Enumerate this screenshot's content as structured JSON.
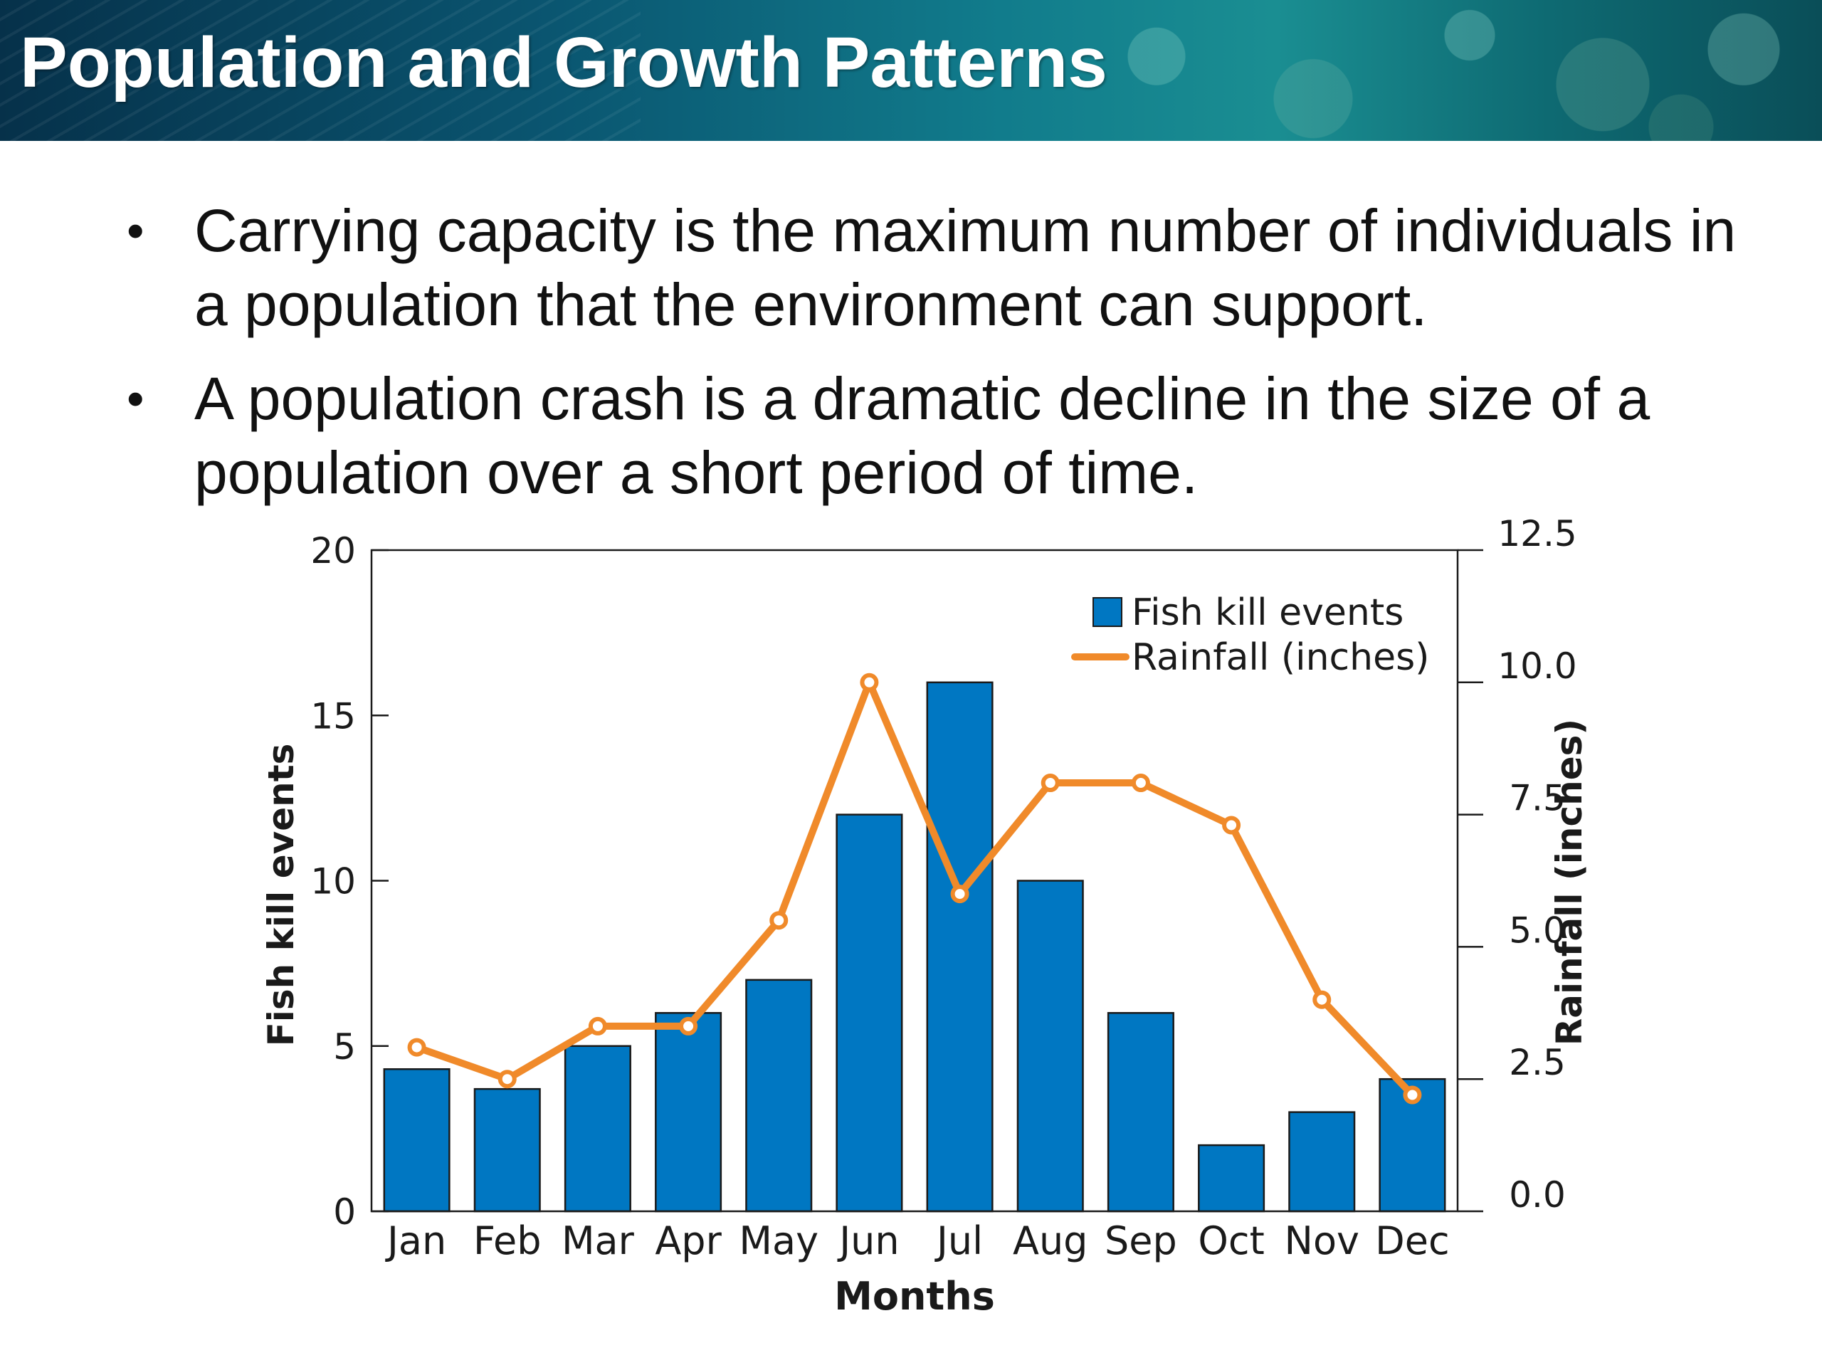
{
  "slide": {
    "title": "Population and Growth Patterns",
    "bullets": [
      "Carrying capacity is the maximum number of individuals in a population that the environment can support.",
      "A population crash is a dramatic decline in the size of a population over a short period of time."
    ]
  },
  "chart_data": {
    "type": "bar",
    "categories": [
      "Jan",
      "Feb",
      "Mar",
      "Apr",
      "May",
      "Jun",
      "Jul",
      "Aug",
      "Sep",
      "Oct",
      "Nov",
      "Dec"
    ],
    "series": [
      {
        "name": "Fish kill events",
        "type": "bar",
        "axis": "left",
        "color": "#0077c2",
        "values": [
          4.3,
          3.7,
          5,
          6,
          7,
          12,
          16,
          10,
          6,
          2,
          3,
          4
        ]
      },
      {
        "name": "Rainfall (inches)",
        "type": "line",
        "axis": "right",
        "color": "#f08a2a",
        "values": [
          3.1,
          2.5,
          3.5,
          3.5,
          5.5,
          10.0,
          6.0,
          8.1,
          8.1,
          7.3,
          4.0,
          2.2
        ]
      }
    ],
    "xlabel": "Months",
    "ylabel_left": "Fish kill events",
    "ylabel_right": "Rainfall (inches)",
    "ylim_left": [
      0,
      20
    ],
    "ylim_right": [
      0,
      12.5
    ],
    "yticks_left": [
      "0",
      "5",
      "10",
      "15",
      "20"
    ],
    "yticks_right": [
      "0.0",
      "2.5",
      "5.0",
      "7.5",
      "10.0",
      "12.5"
    ],
    "grid": false,
    "legend_position": "top-right"
  }
}
